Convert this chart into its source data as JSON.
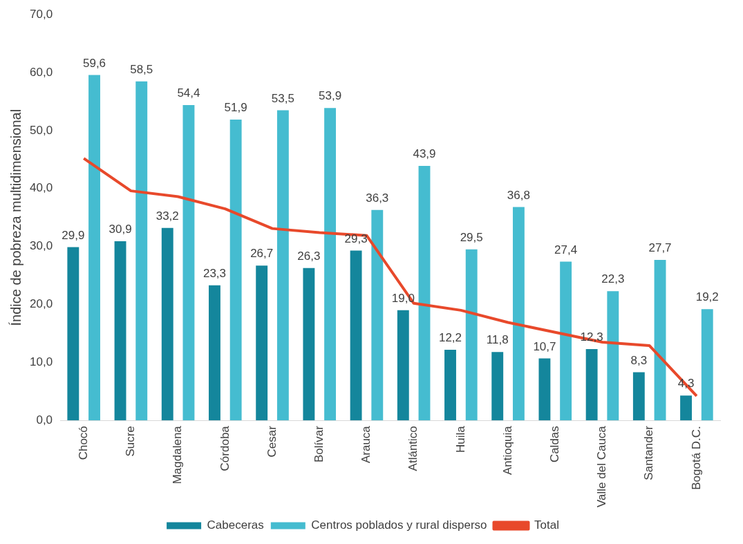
{
  "chart_data": {
    "type": "bar",
    "ylabel": "Índice de pobreza multidimensional",
    "categories": [
      "Chocó",
      "Sucre",
      "Magdalena",
      "Córdoba",
      "Cesar",
      "Bolívar",
      "Arauca",
      "Atlántico",
      "Huila",
      "Antioquia",
      "Caldas",
      "Valle del Cauca",
      "Santander",
      "Bogotá D.C."
    ],
    "series": [
      {
        "name": "Cabeceras",
        "color": "#14869c",
        "values": [
          29.9,
          30.9,
          33.2,
          23.3,
          26.7,
          26.3,
          29.3,
          19.0,
          12.2,
          11.8,
          10.7,
          12.3,
          8.3,
          4.3
        ],
        "value_labels": [
          "29,9",
          "30,9",
          "33,2",
          "23,3",
          "26,7",
          "26,3",
          "29,3",
          "19,0",
          "12,2",
          "11,8",
          "10,7",
          "12,3",
          "8,3",
          "4,3"
        ]
      },
      {
        "name": "Centros poblados y rural disperso",
        "color": "#45bcd0",
        "values": [
          59.6,
          58.5,
          54.4,
          51.9,
          53.5,
          53.9,
          36.3,
          43.9,
          29.5,
          36.8,
          27.4,
          22.3,
          27.7,
          19.2
        ],
        "value_labels": [
          "59,6",
          "58,5",
          "54,4",
          "51,9",
          "53,5",
          "53,9",
          "36,3",
          "43,9",
          "29,5",
          "36,8",
          "27,4",
          "22,3",
          "27,7",
          "19,2"
        ]
      },
      {
        "name": "Total",
        "type": "line",
        "color": "#e8492b",
        "values": [
          45.2,
          39.6,
          38.6,
          36.5,
          33.1,
          32.4,
          31.9,
          20.2,
          19.0,
          16.9,
          15.2,
          13.5,
          12.9,
          4.2
        ]
      }
    ],
    "ylim": [
      0,
      70
    ],
    "yticks": [
      {
        "value": 0,
        "label": "0,0"
      },
      {
        "value": 10,
        "label": "10,0"
      },
      {
        "value": 20,
        "label": "20,0"
      },
      {
        "value": 30,
        "label": "30,0"
      },
      {
        "value": 40,
        "label": "40,0"
      },
      {
        "value": 50,
        "label": "50,0"
      },
      {
        "value": 60,
        "label": "60,0"
      },
      {
        "value": 70,
        "label": "70,0"
      }
    ],
    "grid": false,
    "legend": "bottom",
    "marker": "none",
    "line_style": "solid"
  }
}
